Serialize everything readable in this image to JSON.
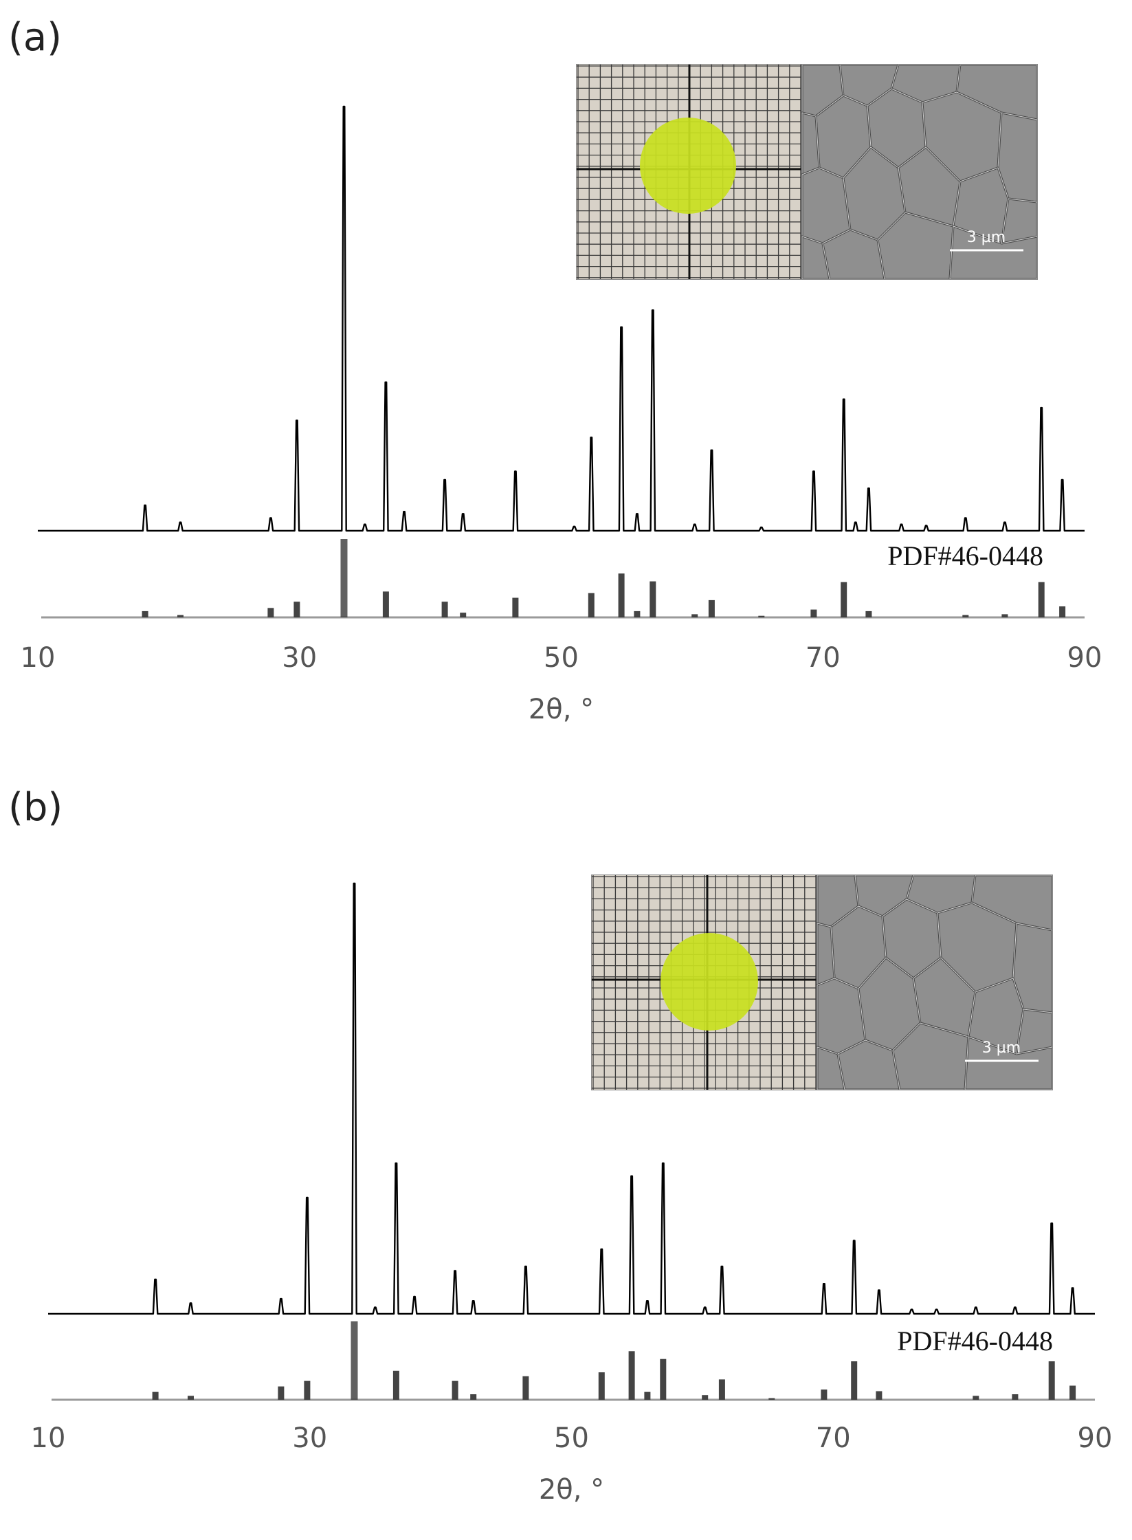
{
  "figure": {
    "panels": [
      {
        "label": "(a)",
        "reference_label": "PDF#46-0448",
        "scale_bar_label": "3 µm"
      },
      {
        "label": "(b)",
        "reference_label": "PDF#46-0448",
        "scale_bar_label": "3 µm"
      }
    ]
  },
  "colors": {
    "pattern_line": "#000000",
    "reference_bars": "#3a3a3a",
    "reference_baseline": "#9a9a9a",
    "axis_text": "#555555",
    "pellet": "#c8e020",
    "grid_paper": "#d8d2c8",
    "sem_background": "#9a9a9a"
  },
  "chart_data": [
    {
      "type": "line",
      "panel": "(a)",
      "xlabel": "2θ, °",
      "ylabel": "",
      "xlim": [
        10,
        90
      ],
      "xticks": [
        "10",
        "30",
        "50",
        "70",
        "90"
      ],
      "grid": false,
      "series": [
        {
          "peaks": [
            {
              "x": 18.2,
              "y": 6
            },
            {
              "x": 20.9,
              "y": 2
            },
            {
              "x": 27.8,
              "y": 3
            },
            {
              "x": 29.8,
              "y": 26
            },
            {
              "x": 33.4,
              "y": 100
            },
            {
              "x": 35.0,
              "y": 1.5
            },
            {
              "x": 36.6,
              "y": 35
            },
            {
              "x": 38.0,
              "y": 4.5
            },
            {
              "x": 41.1,
              "y": 12
            },
            {
              "x": 42.5,
              "y": 4
            },
            {
              "x": 46.5,
              "y": 14
            },
            {
              "x": 51.0,
              "y": 1
            },
            {
              "x": 52.3,
              "y": 22
            },
            {
              "x": 54.6,
              "y": 48
            },
            {
              "x": 55.8,
              "y": 4
            },
            {
              "x": 57.0,
              "y": 52
            },
            {
              "x": 60.2,
              "y": 1.5
            },
            {
              "x": 61.5,
              "y": 19
            },
            {
              "x": 65.3,
              "y": 0.8
            },
            {
              "x": 69.3,
              "y": 14
            },
            {
              "x": 71.6,
              "y": 31
            },
            {
              "x": 72.5,
              "y": 2
            },
            {
              "x": 73.5,
              "y": 10
            },
            {
              "x": 76.0,
              "y": 1.5
            },
            {
              "x": 77.9,
              "y": 1.2
            },
            {
              "x": 80.9,
              "y": 3
            },
            {
              "x": 83.9,
              "y": 2
            },
            {
              "x": 86.7,
              "y": 29
            },
            {
              "x": 88.3,
              "y": 12
            }
          ]
        }
      ],
      "reference": {
        "name": "PDF#46-0448",
        "bars": [
          {
            "x": 18.2,
            "y": 8
          },
          {
            "x": 20.9,
            "y": 3
          },
          {
            "x": 27.8,
            "y": 12
          },
          {
            "x": 29.8,
            "y": 20
          },
          {
            "x": 33.4,
            "y": 100
          },
          {
            "x": 36.6,
            "y": 33
          },
          {
            "x": 41.1,
            "y": 20
          },
          {
            "x": 42.5,
            "y": 6
          },
          {
            "x": 46.5,
            "y": 25
          },
          {
            "x": 52.3,
            "y": 31
          },
          {
            "x": 54.6,
            "y": 56
          },
          {
            "x": 55.8,
            "y": 8
          },
          {
            "x": 57.0,
            "y": 46
          },
          {
            "x": 60.2,
            "y": 4
          },
          {
            "x": 61.5,
            "y": 22
          },
          {
            "x": 65.3,
            "y": 2
          },
          {
            "x": 69.3,
            "y": 10
          },
          {
            "x": 71.6,
            "y": 45
          },
          {
            "x": 73.5,
            "y": 8
          },
          {
            "x": 80.9,
            "y": 3
          },
          {
            "x": 83.9,
            "y": 4
          },
          {
            "x": 86.7,
            "y": 45
          },
          {
            "x": 88.3,
            "y": 14
          }
        ]
      }
    },
    {
      "type": "line",
      "panel": "(b)",
      "xlabel": "2θ, °",
      "ylabel": "",
      "xlim": [
        10,
        90
      ],
      "xticks": [
        "10",
        "30",
        "50",
        "70",
        "90"
      ],
      "grid": false,
      "series": [
        {
          "peaks": [
            {
              "x": 18.2,
              "y": 8
            },
            {
              "x": 20.9,
              "y": 2.5
            },
            {
              "x": 27.8,
              "y": 3.5
            },
            {
              "x": 29.8,
              "y": 27
            },
            {
              "x": 33.4,
              "y": 100
            },
            {
              "x": 35.0,
              "y": 1.5
            },
            {
              "x": 36.6,
              "y": 35
            },
            {
              "x": 38.0,
              "y": 4
            },
            {
              "x": 41.1,
              "y": 10
            },
            {
              "x": 42.5,
              "y": 3
            },
            {
              "x": 46.5,
              "y": 11
            },
            {
              "x": 52.3,
              "y": 15
            },
            {
              "x": 54.6,
              "y": 32
            },
            {
              "x": 55.8,
              "y": 3
            },
            {
              "x": 57.0,
              "y": 35
            },
            {
              "x": 60.2,
              "y": 1.5
            },
            {
              "x": 61.5,
              "y": 11
            },
            {
              "x": 69.3,
              "y": 7
            },
            {
              "x": 71.6,
              "y": 17
            },
            {
              "x": 73.5,
              "y": 5.5
            },
            {
              "x": 76.0,
              "y": 1
            },
            {
              "x": 77.9,
              "y": 1
            },
            {
              "x": 80.9,
              "y": 1.5
            },
            {
              "x": 83.9,
              "y": 1.5
            },
            {
              "x": 86.7,
              "y": 21
            },
            {
              "x": 88.3,
              "y": 6
            }
          ]
        }
      ],
      "reference": {
        "name": "PDF#46-0448",
        "bars": [
          {
            "x": 18.2,
            "y": 10
          },
          {
            "x": 20.9,
            "y": 5
          },
          {
            "x": 27.8,
            "y": 17
          },
          {
            "x": 29.8,
            "y": 24
          },
          {
            "x": 33.4,
            "y": 100
          },
          {
            "x": 36.6,
            "y": 37
          },
          {
            "x": 41.1,
            "y": 24
          },
          {
            "x": 42.5,
            "y": 7
          },
          {
            "x": 46.5,
            "y": 30
          },
          {
            "x": 52.3,
            "y": 35
          },
          {
            "x": 54.6,
            "y": 62
          },
          {
            "x": 55.8,
            "y": 10
          },
          {
            "x": 57.0,
            "y": 52
          },
          {
            "x": 60.2,
            "y": 6
          },
          {
            "x": 61.5,
            "y": 26
          },
          {
            "x": 65.3,
            "y": 2
          },
          {
            "x": 69.3,
            "y": 13
          },
          {
            "x": 71.6,
            "y": 49
          },
          {
            "x": 73.5,
            "y": 11
          },
          {
            "x": 80.9,
            "y": 5
          },
          {
            "x": 83.9,
            "y": 7
          },
          {
            "x": 86.7,
            "y": 49
          },
          {
            "x": 88.3,
            "y": 18
          }
        ]
      }
    }
  ]
}
